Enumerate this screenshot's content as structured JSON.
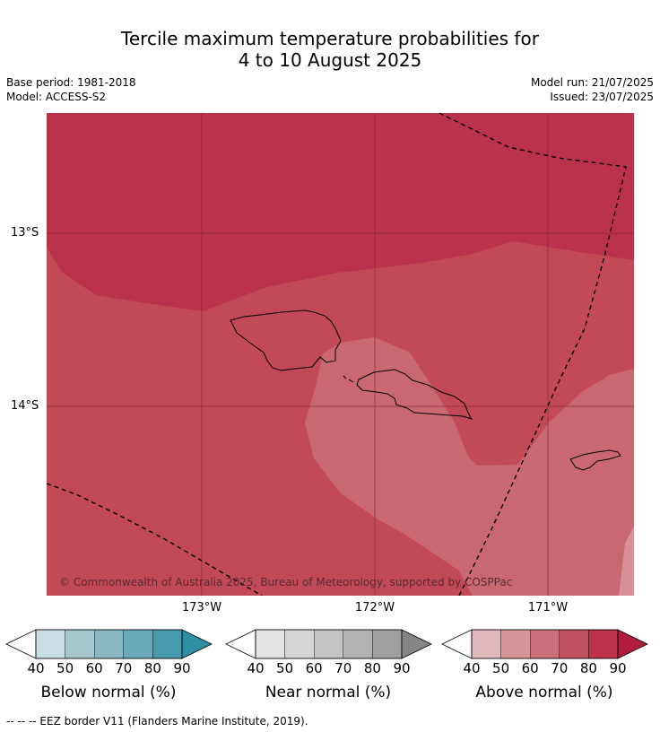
{
  "title_line1": "Tercile maximum temperature probabilities for",
  "title_line2": "4 to 10 August 2025",
  "base_period": "Base period: 1981-2018",
  "model": "Model: ACCESS-S2",
  "model_run": "Model run: 21/07/2025",
  "issued": "Issued: 23/07/2025",
  "map": {
    "copyright": "© Commonwealth of Australia 2025, Bureau of Meteorology, supported by COSPPac",
    "lat_labels": [
      "13°S",
      "14°S"
    ],
    "lon_labels": [
      "173°W",
      "172°W",
      "171°W"
    ],
    "colors": {
      "above_80": "#bb334a",
      "above_70": "#c24a57",
      "above_60": "#c96870",
      "above_50": "#d69096",
      "islands_outline": "#000000",
      "eez_border": "#000000"
    }
  },
  "colorbars": [
    {
      "label": "Below normal (%)",
      "ticks": [
        "40",
        "50",
        "60",
        "70",
        "80",
        "90"
      ],
      "colors": [
        "#ffffff",
        "#c8e0e5",
        "#a5c7cc",
        "#88b6c2",
        "#6aa9b9",
        "#489aad",
        "#2e8ea3"
      ]
    },
    {
      "label": "Near normal (%)",
      "ticks": [
        "40",
        "50",
        "60",
        "70",
        "80",
        "90"
      ],
      "colors": [
        "#ffffff",
        "#e3e3e3",
        "#d5d5d5",
        "#c4c4c4",
        "#b2b2b2",
        "#9f9f9f",
        "#858585"
      ]
    },
    {
      "label": "Above normal (%)",
      "ticks": [
        "40",
        "50",
        "60",
        "70",
        "80",
        "90"
      ],
      "colors": [
        "#ffffff",
        "#e2b8bc",
        "#d6959b",
        "#c9707a",
        "#c2525f",
        "#bc3049",
        "#b01d3c"
      ]
    }
  ],
  "footer": "-- -- -- EEZ border V11 (Flanders Marine Institute, 2019)."
}
